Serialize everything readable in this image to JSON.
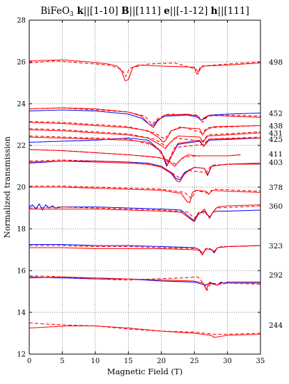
{
  "chart_data": {
    "type": "line",
    "title": {
      "parts": [
        {
          "text": "BiFeO",
          "bold": false
        },
        {
          "text": "3",
          "sub": true,
          "bold": false
        },
        {
          "text": " k",
          "bold": true
        },
        {
          "text": "||[1-10] ",
          "bold": false
        },
        {
          "text": "B",
          "bold": true
        },
        {
          "text": "||[111] ",
          "bold": false
        },
        {
          "text": "e",
          "bold": true
        },
        {
          "text": "||[-1-12] ",
          "bold": false
        },
        {
          "text": "h",
          "bold": true
        },
        {
          "text": "||[111]",
          "bold": false
        }
      ]
    },
    "xlabel": "Magnetic Field (T)",
    "ylabel": "Normalized transmission",
    "xlim": [
      0,
      35
    ],
    "ylim": [
      12,
      28
    ],
    "xticks": [
      0,
      5,
      10,
      15,
      20,
      25,
      30,
      35
    ],
    "yticks": [
      12,
      14,
      16,
      18,
      20,
      22,
      24,
      26,
      28
    ],
    "grid": true,
    "grid_style": "dotted",
    "right_labels_unit": "",
    "right_labels": [
      {
        "text": "498",
        "y": 26.0
      },
      {
        "text": "452",
        "y": 23.55
      },
      {
        "text": "438",
        "y": 22.95
      },
      {
        "text": "431",
        "y": 22.6
      },
      {
        "text": "425",
        "y": 22.3
      },
      {
        "text": "411",
        "y": 21.6
      },
      {
        "text": "403",
        "y": 21.2
      },
      {
        "text": "378",
        "y": 20.0
      },
      {
        "text": "360",
        "y": 19.1
      },
      {
        "text": "323",
        "y": 17.2
      },
      {
        "text": "292",
        "y": 15.8
      },
      {
        "text": "244",
        "y": 13.4
      }
    ],
    "series": [
      {
        "freq": "498",
        "style": "solid",
        "color": "#ff0000",
        "x": [
          0,
          5,
          9,
          12,
          13.3,
          14.0,
          14.5,
          15.0,
          15.7,
          16.5,
          20,
          25,
          25.3,
          25.5,
          25.8,
          26.5,
          30,
          35
        ],
        "y": [
          26.05,
          26.1,
          26.0,
          25.9,
          25.8,
          25.55,
          25.1,
          25.15,
          25.75,
          25.85,
          25.8,
          25.75,
          25.45,
          25.4,
          25.7,
          25.8,
          25.85,
          25.95
        ]
      },
      {
        "freq": "498",
        "style": "dashed",
        "color": "#ff0000",
        "x": [
          0,
          4,
          8,
          12,
          14.0,
          14.6,
          15.2,
          18,
          22,
          25.3,
          25.6,
          26.2,
          30,
          35
        ],
        "y": [
          25.95,
          26.05,
          25.95,
          25.85,
          25.65,
          25.3,
          25.7,
          25.9,
          25.95,
          25.65,
          25.5,
          25.8,
          25.9,
          26.0
        ]
      },
      {
        "freq": "452",
        "style": "solid",
        "color": "#0000ff",
        "x": [
          0,
          5,
          10,
          15,
          17,
          18.2,
          18.8,
          19.4,
          20.5,
          24,
          25.5,
          26,
          26.6,
          27.3,
          30,
          35
        ],
        "y": [
          23.65,
          23.7,
          23.65,
          23.5,
          23.3,
          23.0,
          22.95,
          23.2,
          23.4,
          23.45,
          23.35,
          23.2,
          23.3,
          23.45,
          23.5,
          23.55
        ]
      },
      {
        "freq": "452",
        "style": "solid",
        "color": "#ff0000",
        "x": [
          0,
          5,
          10,
          15,
          17,
          18.2,
          18.8,
          19.4,
          20.5,
          24,
          25.5,
          26,
          26.6,
          27.3,
          30,
          35
        ],
        "y": [
          23.75,
          23.8,
          23.75,
          23.6,
          23.4,
          23.0,
          22.85,
          23.15,
          23.45,
          23.5,
          23.4,
          23.2,
          23.35,
          23.45,
          23.4,
          23.35
        ]
      },
      {
        "freq": "452",
        "style": "dashed",
        "color": "#ff0000",
        "x": [
          0,
          5,
          10,
          15,
          17.5,
          18.6,
          19.5,
          21,
          25.5,
          26.2,
          27,
          30,
          35
        ],
        "y": [
          23.75,
          23.8,
          23.7,
          23.6,
          23.4,
          23.0,
          23.3,
          23.5,
          23.45,
          23.1,
          23.4,
          23.45,
          23.4
        ]
      },
      {
        "freq": "438",
        "style": "solid",
        "color": "#ff0000",
        "x": [
          0,
          5,
          10,
          15,
          18,
          19.5,
          20.3,
          20.8,
          21.5,
          23,
          25.8,
          26.2,
          26.8,
          28,
          35
        ],
        "y": [
          23.1,
          23.05,
          22.95,
          22.85,
          22.7,
          22.4,
          22.15,
          22.3,
          22.7,
          22.85,
          22.8,
          22.5,
          22.75,
          22.9,
          22.95
        ]
      },
      {
        "freq": "438",
        "style": "dashed",
        "color": "#ff0000",
        "x": [
          0,
          5,
          10,
          15,
          19,
          20.5,
          21.5,
          23,
          26.2,
          27,
          35
        ],
        "y": [
          23.15,
          23.1,
          23.0,
          22.9,
          22.6,
          22.3,
          22.7,
          22.9,
          22.6,
          22.85,
          22.95
        ]
      },
      {
        "freq": "431",
        "style": "solid",
        "color": "#ff0000",
        "x": [
          0,
          5,
          10,
          15,
          18,
          20,
          20.6,
          21.2,
          22.5,
          25.8,
          26.3,
          27,
          35
        ],
        "y": [
          22.75,
          22.7,
          22.6,
          22.5,
          22.35,
          22.0,
          21.85,
          22.1,
          22.45,
          22.4,
          22.15,
          22.45,
          22.6
        ]
      },
      {
        "freq": "431",
        "style": "dashed",
        "color": "#ff0000",
        "x": [
          0,
          5,
          10,
          15,
          19,
          20.8,
          22,
          26.3,
          27,
          35
        ],
        "y": [
          22.8,
          22.75,
          22.65,
          22.55,
          22.3,
          21.95,
          22.35,
          22.2,
          22.5,
          22.65
        ]
      },
      {
        "freq": "425",
        "style": "solid",
        "color": "#0000ff",
        "x": [
          0,
          5,
          10,
          15,
          18,
          20,
          20.8,
          21.4,
          22.5,
          25.8,
          26.4,
          27.2,
          35
        ],
        "y": [
          22.15,
          22.2,
          22.25,
          22.35,
          22.25,
          21.7,
          21.0,
          21.4,
          22.05,
          22.2,
          21.95,
          22.25,
          22.35
        ]
      },
      {
        "freq": "425",
        "style": "solid",
        "color": "#ff0000",
        "x": [
          0,
          5,
          10,
          15,
          18,
          20,
          20.9,
          21.5,
          22.5,
          25.8,
          26.4,
          27.2,
          35
        ],
        "y": [
          22.4,
          22.35,
          22.3,
          22.25,
          22.15,
          21.7,
          21.05,
          21.45,
          22.1,
          22.25,
          21.95,
          22.3,
          22.35
        ]
      },
      {
        "freq": "425",
        "style": "dashed",
        "color": "#ff0000",
        "x": [
          0,
          5,
          10,
          15,
          19,
          21,
          22,
          26.4,
          27.2,
          35
        ],
        "y": [
          22.45,
          22.4,
          22.35,
          22.3,
          22.0,
          21.2,
          21.9,
          22.05,
          22.3,
          22.4
        ]
      },
      {
        "freq": "411",
        "style": "solid",
        "color": "#ff0000",
        "x": [
          0,
          5,
          10,
          15,
          19,
          21,
          22,
          23,
          24,
          25.5,
          27.5,
          30,
          32
        ],
        "y": [
          21.8,
          21.75,
          21.65,
          21.55,
          21.45,
          21.3,
          21.0,
          21.35,
          21.55,
          21.5,
          21.5,
          21.5,
          21.55
        ]
      },
      {
        "freq": "411",
        "style": "dashed",
        "color": "#ff0000",
        "x": [
          0,
          5,
          10,
          15,
          20,
          22.2,
          23.5,
          26,
          30,
          32
        ],
        "y": [
          21.8,
          21.75,
          21.65,
          21.55,
          21.4,
          21.1,
          21.45,
          21.5,
          21.5,
          21.55
        ]
      },
      {
        "freq": "403",
        "style": "solid",
        "color": "#0000ff",
        "x": [
          0,
          5,
          10,
          15,
          18,
          20,
          21.5,
          22.3,
          22.8,
          23.5,
          25,
          26.5,
          27,
          27.6,
          30,
          35
        ],
        "y": [
          21.15,
          21.25,
          21.25,
          21.2,
          21.15,
          21.0,
          20.7,
          20.4,
          20.35,
          20.7,
          20.95,
          20.9,
          20.6,
          21.0,
          21.1,
          21.15
        ]
      },
      {
        "freq": "403",
        "style": "solid",
        "color": "#ff0000",
        "x": [
          0,
          5,
          10,
          15,
          18,
          20,
          21.5,
          22.3,
          22.8,
          23.5,
          25,
          26.5,
          27,
          27.6,
          30,
          35
        ],
        "y": [
          21.2,
          21.25,
          21.2,
          21.15,
          21.1,
          20.95,
          20.65,
          20.3,
          20.25,
          20.65,
          20.95,
          20.9,
          20.55,
          21.0,
          21.1,
          21.1
        ]
      },
      {
        "freq": "403",
        "style": "dashed",
        "color": "#ff0000",
        "x": [
          0,
          5,
          10,
          15,
          20,
          22,
          23,
          24,
          26.8,
          27.6,
          35
        ],
        "y": [
          21.25,
          21.3,
          21.25,
          21.2,
          21.0,
          20.6,
          20.4,
          20.8,
          20.7,
          21.05,
          21.15
        ]
      },
      {
        "freq": "378",
        "style": "solid",
        "color": "#ff0000",
        "x": [
          0,
          5,
          10,
          15,
          20,
          23,
          23.9,
          24.3,
          24.7,
          25.3,
          26.8,
          27.2,
          27.6,
          30,
          35
        ],
        "y": [
          20.0,
          20.0,
          19.95,
          19.9,
          19.85,
          19.7,
          19.3,
          19.25,
          19.75,
          19.85,
          19.8,
          19.65,
          19.85,
          19.8,
          19.75
        ]
      },
      {
        "freq": "378",
        "style": "dashed",
        "color": "#ff0000",
        "x": [
          0,
          5,
          10,
          15,
          20,
          23.5,
          24.6,
          25.2,
          27.2,
          28,
          35
        ],
        "y": [
          20.05,
          20.05,
          20.0,
          19.95,
          19.9,
          19.75,
          19.45,
          19.85,
          19.7,
          19.9,
          19.8
        ]
      },
      {
        "freq": "360",
        "style": "solid",
        "color": "#0000ff",
        "x": [
          0,
          0.5,
          1,
          1.5,
          2,
          2.5,
          3,
          3.5,
          4,
          5,
          10,
          15,
          20,
          23,
          24.5,
          25,
          25.5,
          26.5,
          27.3,
          27.8,
          28.5,
          30,
          35
        ],
        "y": [
          19.05,
          19.15,
          18.95,
          19.2,
          18.9,
          19.15,
          19.0,
          19.1,
          19.0,
          19.05,
          19.05,
          19.0,
          18.95,
          18.9,
          18.5,
          18.4,
          18.7,
          18.85,
          18.55,
          18.8,
          18.85,
          18.85,
          18.9
        ]
      },
      {
        "freq": "360",
        "style": "solid",
        "color": "#ff0000",
        "x": [
          0,
          5,
          10,
          15,
          20,
          23,
          24.5,
          25,
          25.5,
          26.5,
          27.3,
          27.8,
          28.5,
          30,
          35
        ],
        "y": [
          18.95,
          18.95,
          18.95,
          18.9,
          18.85,
          18.8,
          18.45,
          18.35,
          18.65,
          18.95,
          18.5,
          18.8,
          19.05,
          19.1,
          19.15
        ]
      },
      {
        "freq": "360",
        "style": "dashed",
        "color": "#ff0000",
        "x": [
          0,
          5,
          10,
          15,
          20,
          24,
          25,
          25.8,
          27.4,
          28.3,
          35
        ],
        "y": [
          19.0,
          19.05,
          19.0,
          18.95,
          18.9,
          18.8,
          18.5,
          18.85,
          18.6,
          19.0,
          19.1
        ]
      },
      {
        "freq": "323",
        "style": "solid",
        "color": "#0000ff",
        "x": [
          0,
          5,
          10,
          15,
          20,
          25,
          25.8,
          26.2,
          26.7,
          27.6,
          28,
          28.5,
          30,
          35
        ],
        "y": [
          17.25,
          17.25,
          17.2,
          17.2,
          17.15,
          17.1,
          17.0,
          16.75,
          17.05,
          17.0,
          16.85,
          17.1,
          17.15,
          17.2
        ]
      },
      {
        "freq": "323",
        "style": "solid",
        "color": "#ff0000",
        "x": [
          0,
          5,
          10,
          15,
          20,
          25,
          25.8,
          26.2,
          26.7,
          27.6,
          28,
          28.5,
          30,
          35
        ],
        "y": [
          17.1,
          17.1,
          17.05,
          17.05,
          17.05,
          17.0,
          16.95,
          16.75,
          17.05,
          17.0,
          16.9,
          17.1,
          17.15,
          17.2
        ]
      },
      {
        "freq": "323",
        "style": "dashed",
        "color": "#ff0000",
        "x": [
          0,
          5,
          10,
          15,
          20,
          25.5,
          26.3,
          27,
          28,
          29,
          35
        ],
        "y": [
          17.2,
          17.2,
          17.15,
          17.15,
          17.1,
          17.05,
          16.85,
          17.1,
          16.95,
          17.15,
          17.2
        ]
      },
      {
        "freq": "292",
        "style": "solid",
        "color": "#0000ff",
        "x": [
          0,
          5,
          10,
          15,
          20,
          25,
          26.2,
          26.7,
          27.3,
          28.5,
          29,
          29.5,
          30,
          35
        ],
        "y": [
          15.7,
          15.65,
          15.6,
          15.6,
          15.5,
          15.45,
          15.35,
          15.3,
          15.4,
          15.3,
          15.45,
          15.4,
          15.45,
          15.45
        ]
      },
      {
        "freq": "292",
        "style": "solid",
        "color": "#ff0000",
        "x": [
          0,
          5,
          10,
          15,
          20,
          25,
          26.3,
          26.8,
          27.3,
          28.5,
          29,
          29.5,
          30,
          35
        ],
        "y": [
          15.65,
          15.7,
          15.65,
          15.6,
          15.55,
          15.5,
          15.4,
          15.1,
          15.45,
          15.3,
          15.4,
          15.4,
          15.4,
          15.4
        ]
      },
      {
        "freq": "292",
        "style": "dashed",
        "color": "#ff0000",
        "x": [
          0,
          5,
          10,
          15,
          19,
          23,
          25.5,
          26.5,
          26.9,
          27.5,
          29,
          30,
          35
        ],
        "y": [
          15.75,
          15.7,
          15.6,
          15.55,
          15.6,
          15.65,
          15.7,
          15.35,
          15.05,
          15.4,
          15.35,
          15.4,
          15.35
        ]
      },
      {
        "freq": "244",
        "style": "solid",
        "color": "#ff0000",
        "x": [
          0,
          3,
          6,
          10,
          15,
          20,
          25,
          27.5,
          28,
          30,
          35
        ],
        "y": [
          13.25,
          13.3,
          13.35,
          13.35,
          13.25,
          13.1,
          13.0,
          12.9,
          12.8,
          12.9,
          12.95
        ]
      },
      {
        "freq": "244",
        "style": "dashed",
        "color": "#ff0000",
        "x": [
          0,
          2,
          5,
          10,
          15,
          20,
          25,
          28,
          30,
          35
        ],
        "y": [
          13.5,
          13.45,
          13.4,
          13.35,
          13.2,
          13.1,
          13.05,
          12.95,
          12.95,
          13.0
        ]
      }
    ]
  }
}
